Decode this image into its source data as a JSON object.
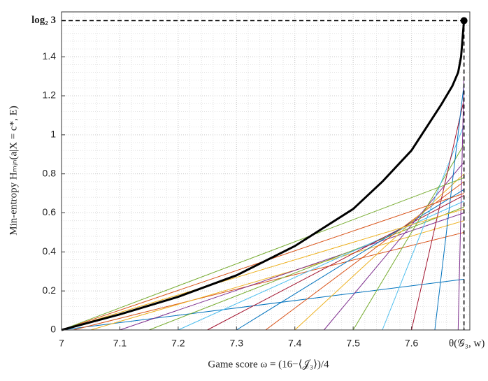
{
  "chart_data": {
    "type": "line",
    "xlabel": "Game score ω = (16−⟨𝒥₃⟩)/4",
    "ylabel": "Min-entropy Hₘᵢₙ(a|X = c*, E)",
    "xlim": [
      7,
      7.7
    ],
    "ylim": [
      0,
      1.63
    ],
    "xticks": [
      7,
      7.1,
      7.2,
      7.3,
      7.4,
      7.5,
      7.6,
      {
        "value": 7.69,
        "label": "θ(𝒢₃, w)"
      }
    ],
    "yticks": [
      0,
      0.2,
      0.4,
      0.6,
      0.8,
      1,
      1.2,
      1.4,
      {
        "value": 1.585,
        "label": "log₂ 3"
      }
    ],
    "grid": true,
    "minor_grid": true,
    "series": [
      {
        "color": "#0072BD",
        "x": [
          7,
          7.69
        ],
        "values": [
          0,
          0.26
        ]
      },
      {
        "color": "#D95319",
        "x": [
          7.02,
          7.69
        ],
        "values": [
          0,
          0.5
        ]
      },
      {
        "color": "#EDB120",
        "x": [
          7.05,
          7.69
        ],
        "values": [
          0,
          0.56
        ]
      },
      {
        "color": "#7E2F8E",
        "x": [
          7.1,
          7.69
        ],
        "values": [
          0,
          0.6
        ]
      },
      {
        "color": "#77AC30",
        "x": [
          7.15,
          7.69
        ],
        "values": [
          0,
          0.63
        ]
      },
      {
        "color": "#4DBEEE",
        "x": [
          7.2,
          7.69
        ],
        "values": [
          0,
          0.66
        ]
      },
      {
        "color": "#A2142F",
        "x": [
          7.25,
          7.69
        ],
        "values": [
          0,
          0.69
        ]
      },
      {
        "color": "#0072BD",
        "x": [
          7.3,
          7.69
        ],
        "values": [
          0,
          0.72
        ]
      },
      {
        "color": "#D95319",
        "x": [
          7.35,
          7.69
        ],
        "values": [
          0,
          0.76
        ]
      },
      {
        "color": "#EDB120",
        "x": [
          7.4,
          7.69
        ],
        "values": [
          0,
          0.8
        ]
      },
      {
        "color": "#7E2F8E",
        "x": [
          7.45,
          7.69
        ],
        "values": [
          0,
          0.86
        ]
      },
      {
        "color": "#77AC30",
        "x": [
          7.5,
          7.69
        ],
        "values": [
          0,
          0.95
        ]
      },
      {
        "color": "#4DBEEE",
        "x": [
          7.55,
          7.69
        ],
        "values": [
          0,
          1.05
        ]
      },
      {
        "color": "#A2142F",
        "x": [
          7.6,
          7.69
        ],
        "values": [
          0,
          1.18
        ]
      },
      {
        "color": "#0072BD",
        "x": [
          7.64,
          7.69
        ],
        "values": [
          0,
          1.26
        ]
      },
      {
        "color": "#7E2F8E",
        "x": [
          7.68,
          7.69
        ],
        "values": [
          0,
          1.3
        ]
      },
      {
        "color": "#D95319",
        "x": [
          7,
          7.69
        ],
        "values": [
          0,
          0.7
        ]
      },
      {
        "color": "#77AC30",
        "x": [
          7,
          7.69
        ],
        "values": [
          0,
          0.78
        ]
      },
      {
        "color": "#EDB120",
        "x": [
          7,
          7.69
        ],
        "values": [
          0,
          0.62
        ]
      },
      {
        "color": "#000000",
        "x": [
          7,
          7.1,
          7.2,
          7.3,
          7.4,
          7.5,
          7.55,
          7.6,
          7.65,
          7.67,
          7.68,
          7.685,
          7.69
        ],
        "values": [
          0,
          0.08,
          0.17,
          0.28,
          0.43,
          0.62,
          0.76,
          0.92,
          1.15,
          1.25,
          1.32,
          1.4,
          1.585
        ]
      }
    ]
  }
}
